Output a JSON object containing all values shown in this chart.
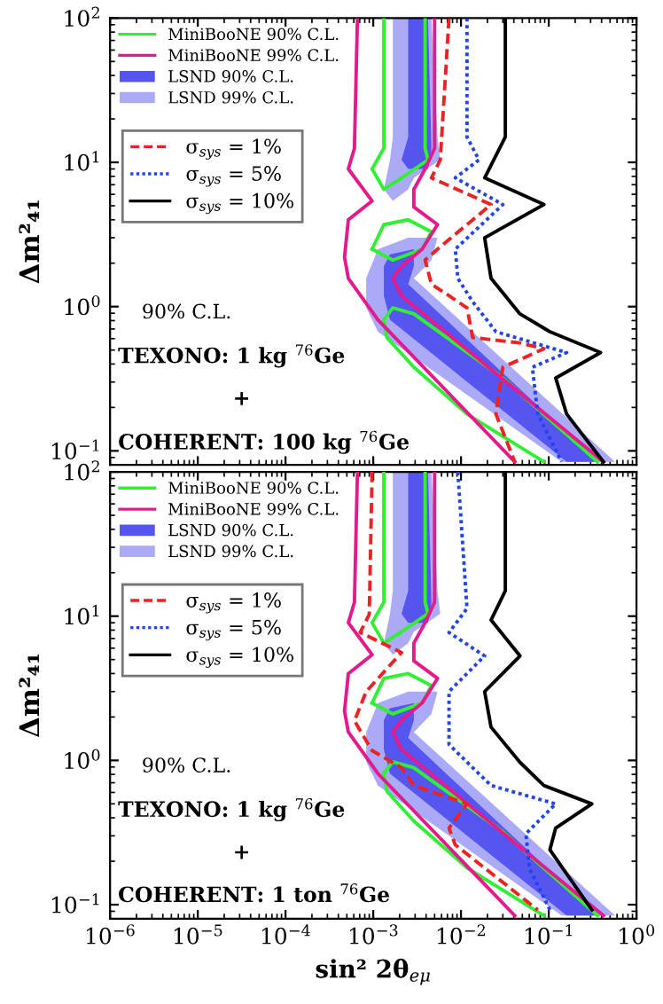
{
  "chart_data": [
    {
      "type": "line",
      "log": "xy",
      "ylabel": "Δm²₄₁",
      "tick_labels": "y",
      "legend": "top left",
      "xlim": [
        1e-06,
        1
      ],
      "ylim": [
        0.08,
        100
      ],
      "xticks": [
        {
          "value": 1e-06,
          "label": null
        },
        {
          "value": 1e-05,
          "label": null
        },
        {
          "value": 0.0001,
          "label": null
        },
        {
          "value": 0.001,
          "label": null
        },
        {
          "value": 0.01,
          "label": null
        },
        {
          "value": 0.1,
          "label": null
        },
        {
          "value": 1,
          "label": null
        }
      ],
      "yticks": [
        {
          "value": 0.1,
          "label": "10$^{−1}$"
        },
        {
          "value": 1,
          "label": "10$^{0}$"
        },
        {
          "value": 10,
          "label": "10$^{1}$"
        },
        {
          "value": 100,
          "label": "10$^{2}$"
        }
      ],
      "annotations": [
        "90% C.L.",
        "TEXONO: 1 kg $^{76}$Ge",
        "+",
        "COHERENT: 100 kg $^{76}$Ge"
      ],
      "series": [
        {
          "name": "MiniBooNE 90% C.L.",
          "type": "line",
          "color": "#33ee33",
          "x": [
            0.00132,
            0.00132,
            0.00097,
            0.00132,
            0.0021,
            0.0042,
            0.0039,
            0.0039
          ],
          "values": [
            100,
            12.5,
            9.0,
            6.5,
            7.8,
            10.4,
            12.5,
            100
          ]
        },
        {
          "type": "line",
          "color": "#33ee34",
          "x": [
            0.00097,
            0.00132,
            0.0025,
            0.0046
          ],
          "values": [
            2.5,
            3.7,
            4.0,
            3.3
          ]
        },
        {
          "type": "line",
          "color": "#33ee35",
          "x": [
            0.0046,
            0.0036,
            0.00167,
            0.00097
          ],
          "values": [
            3.3,
            2.5,
            2.1,
            2.5
          ]
        },
        {
          "type": "line",
          "color": "#33ee36",
          "x": [
            0.00132,
            0.00167,
            0.0029,
            0.03,
            0.36
          ],
          "values": [
            0.81,
            0.98,
            0.89,
            0.32,
            0.084
          ]
        },
        {
          "type": "line",
          "color": "#33ee37",
          "x": [
            0.088,
            0.0117,
            0.0029,
            0.00143,
            0.00132
          ],
          "values": [
            0.084,
            0.18,
            0.38,
            0.61,
            0.81
          ]
        },
        {
          "name": "MiniBooNE 99% C.L.",
          "type": "line",
          "color": "#e6198c",
          "x": [
            0.00066,
            0.00061,
            0.00052,
            0.00097,
            0.00052,
            0.00047,
            0.00052,
            0.00113,
            0.041
          ],
          "values": [
            100,
            12.5,
            9.0,
            5.4,
            4.0,
            2.2,
            1.57,
            0.81,
            0.084
          ]
        },
        {
          "type": "line",
          "color": "#e6198d",
          "x": [
            0.005,
            0.005,
            0.0039,
            0.0029,
            0.0029,
            0.0054,
            0.0036,
            0.0021,
            0.00167,
            0.0021,
            0.42
          ],
          "values": [
            100,
            12.5,
            9.0,
            6.5,
            4.9,
            3.7,
            2.5,
            1.9,
            1.57,
            1.19,
            0.084
          ]
        },
        {
          "name": "LSND 90% C.L.",
          "type": "area",
          "color": "#5555ee",
          "x": [
            0.0025,
            0.0025,
            0.0021,
            0.0025,
            0.0042,
            0.0046,
            0.0042
          ],
          "values": [
            100,
            15,
            10.4,
            9.0,
            9.0,
            12.5,
            100
          ]
        },
        {
          "type": "area",
          "color": "#5555ef",
          "x": [
            0.00132,
            0.00155,
            0.0029,
            0.0029,
            0.0025,
            0.36,
            0.16,
            0.00155,
            0.00132
          ],
          "values": [
            1.9,
            2.3,
            2.5,
            1.9,
            1.43,
            0.084,
            0.084,
            0.81,
            1.19
          ]
        },
        {
          "name": "LSND 99% C.L.",
          "type": "area",
          "color": "#aaaaf5",
          "x": [
            0.00167,
            0.00167,
            0.00155,
            0.00132,
            0.00167,
            0.0025,
            0.0029,
            0.0058,
            0.0054,
            0.0046
          ],
          "values": [
            100,
            15,
            10.4,
            6.5,
            5.4,
            6.5,
            7.8,
            10.4,
            15,
            100
          ]
        },
        {
          "type": "area",
          "color": "#aaaaf6",
          "x": [
            0.00083,
            0.00113,
            0.0025,
            0.0054,
            0.0046,
            0.0029,
            0.57,
            0.14,
            0.00113,
            0.00083
          ],
          "values": [
            1.57,
            2.5,
            3.0,
            3.0,
            2.1,
            1.57,
            0.084,
            0.084,
            0.67,
            0.98
          ]
        },
        {
          "name": "σ$_{sys}$ = 1%",
          "type": "line",
          "line_style": "dashed",
          "color": "#ee2222",
          "x": [
            0.0073,
            0.0058,
            0.0046,
            0.022,
            0.0054,
            0.0039,
            0.0046,
            0.0073,
            0.0117,
            0.0136,
            0.047,
            0.088,
            0.03,
            0.025,
            0.041
          ],
          "values": [
            100,
            10.4,
            7.8,
            5.1,
            2.5,
            2.1,
            1.43,
            1.19,
            0.98,
            0.61,
            0.56,
            0.51,
            0.38,
            0.18,
            0.084
          ]
        },
        {
          "name": "σ$_{sys}$ = 5%",
          "type": "line",
          "line_style": "dotted",
          "color": "#2244ee",
          "x": [
            0.0117,
            0.0117,
            0.016,
            0.0086,
            0.03,
            0.0086,
            0.0092,
            0.0136,
            0.025,
            0.16,
            0.065,
            0.075,
            0.14
          ],
          "values": [
            100,
            15,
            10.4,
            7.8,
            5.1,
            2.5,
            1.57,
            1.08,
            0.67,
            0.48,
            0.38,
            0.18,
            0.084
          ]
        },
        {
          "name": "σ$_{sys}$ = 10%",
          "type": "line",
          "line_style": "solid",
          "color": "#000000",
          "x": [
            0.032,
            0.032,
            0.0186,
            0.088,
            0.0186,
            0.022,
            0.047,
            0.103,
            0.39,
            0.12,
            0.16,
            0.42
          ],
          "values": [
            100,
            15,
            7.8,
            5.1,
            3.0,
            1.57,
            0.89,
            0.67,
            0.48,
            0.32,
            0.18,
            0.084
          ]
        }
      ]
    },
    {
      "type": "line",
      "log": "xy",
      "xlabel": "sin² 2θ$_{eμ}$",
      "ylabel": "Δm²₄₁",
      "legend": "top left",
      "xlim": [
        1e-06,
        1
      ],
      "ylim": [
        0.08,
        100
      ],
      "xticks": [
        {
          "value": 1e-06,
          "label": "10$^{−6}$"
        },
        {
          "value": 1e-05,
          "label": "10$^{−5}$"
        },
        {
          "value": 0.0001,
          "label": "10$^{−4}$"
        },
        {
          "value": 0.001,
          "label": "10$^{−3}$"
        },
        {
          "value": 0.01,
          "label": "10$^{−2}$"
        },
        {
          "value": 0.1,
          "label": "10$^{−1}$"
        },
        {
          "value": 1,
          "label": "10$^{0}$"
        }
      ],
      "yticks": [
        {
          "value": 0.1,
          "label": "10$^{−1}$"
        },
        {
          "value": 1,
          "label": "10$^{0}$"
        },
        {
          "value": 10,
          "label": "10$^{1}$"
        },
        {
          "value": 100,
          "label": "10$^{2}$"
        }
      ],
      "annotations": [
        "90% C.L.",
        "TEXONO: 1 kg $^{76}$Ge",
        "+",
        "COHERENT: 1 ton $^{76}$Ge"
      ],
      "series": [
        {
          "name": "MiniBooNE 90% C.L.",
          "type": "line",
          "color": "#33ee33",
          "x": [
            0.00132,
            0.00132,
            0.00097,
            0.00132,
            0.0021,
            0.0042,
            0.0039,
            0.0039
          ],
          "values": [
            100,
            12.5,
            9.0,
            6.5,
            7.8,
            10.4,
            12.5,
            100
          ]
        },
        {
          "type": "line",
          "color": "#33ee34",
          "x": [
            0.00097,
            0.00132,
            0.0025,
            0.0046
          ],
          "values": [
            2.5,
            3.7,
            4.0,
            3.3
          ]
        },
        {
          "type": "line",
          "color": "#33ee35",
          "x": [
            0.0046,
            0.0036,
            0.00167,
            0.00097
          ],
          "values": [
            3.3,
            2.5,
            2.1,
            2.5
          ]
        },
        {
          "type": "line",
          "color": "#33ee36",
          "x": [
            0.00132,
            0.00167,
            0.0029,
            0.03,
            0.36
          ],
          "values": [
            0.81,
            0.98,
            0.89,
            0.32,
            0.084
          ]
        },
        {
          "type": "line",
          "color": "#33ee37",
          "x": [
            0.088,
            0.0117,
            0.0029,
            0.00143,
            0.00132
          ],
          "values": [
            0.084,
            0.18,
            0.38,
            0.61,
            0.81
          ]
        },
        {
          "name": "MiniBooNE 99% C.L.",
          "type": "line",
          "color": "#e6198c",
          "x": [
            0.00066,
            0.00061,
            0.00052,
            0.00097,
            0.00052,
            0.00047,
            0.00052,
            0.00113,
            0.041
          ],
          "values": [
            100,
            12.5,
            9.0,
            5.4,
            4.0,
            2.2,
            1.57,
            0.81,
            0.084
          ]
        },
        {
          "type": "line",
          "color": "#e6198d",
          "x": [
            0.005,
            0.005,
            0.0039,
            0.0029,
            0.0029,
            0.0054,
            0.0036,
            0.0021,
            0.00167,
            0.0021,
            0.42
          ],
          "values": [
            100,
            12.5,
            9.0,
            6.5,
            4.9,
            3.7,
            2.5,
            1.9,
            1.57,
            1.19,
            0.084
          ]
        },
        {
          "name": "LSND 90% C.L.",
          "type": "area",
          "color": "#5555ee",
          "x": [
            0.0025,
            0.0025,
            0.0021,
            0.0025,
            0.0042,
            0.0046,
            0.0042
          ],
          "values": [
            100,
            15,
            10.4,
            9.0,
            9.0,
            12.5,
            100
          ]
        },
        {
          "type": "area",
          "color": "#5555ef",
          "x": [
            0.00132,
            0.00155,
            0.0029,
            0.0029,
            0.0025,
            0.36,
            0.16,
            0.00155,
            0.00132
          ],
          "values": [
            1.9,
            2.3,
            2.5,
            1.9,
            1.43,
            0.084,
            0.084,
            0.81,
            1.19
          ]
        },
        {
          "name": "LSND 99% C.L.",
          "type": "area",
          "color": "#aaaaf5",
          "x": [
            0.00167,
            0.00167,
            0.00155,
            0.00132,
            0.00167,
            0.0025,
            0.0029,
            0.0058,
            0.0054,
            0.0046
          ],
          "values": [
            100,
            15,
            10.4,
            6.5,
            5.4,
            6.5,
            7.8,
            10.4,
            15,
            100
          ]
        },
        {
          "type": "area",
          "color": "#aaaaf6",
          "x": [
            0.00083,
            0.00113,
            0.0025,
            0.0054,
            0.0046,
            0.0029,
            0.57,
            0.14,
            0.00113,
            0.00083
          ],
          "values": [
            1.57,
            2.5,
            3.0,
            3.0,
            2.1,
            1.57,
            0.084,
            0.084,
            0.67,
            0.98
          ]
        },
        {
          "name": "σ$_{sys}$ = 1%",
          "type": "line",
          "line_style": "dashed",
          "color": "#ee2222",
          "x": [
            0.00097,
            0.0009,
            0.00071,
            0.0021,
            0.00083,
            0.00061,
            0.00097,
            0.0021,
            0.0029,
            0.0117,
            0.0073,
            0.0086,
            0.075
          ],
          "values": [
            100,
            10.3,
            7.7,
            5.6,
            3.0,
            1.88,
            1.17,
            0.89,
            0.67,
            0.5,
            0.34,
            0.26,
            0.092
          ]
        },
        {
          "name": "σ$_{sys}$ = 5%",
          "type": "line",
          "line_style": "dotted",
          "color": "#2244ee",
          "x": [
            0.0092,
            0.0117,
            0.0073,
            0.0186,
            0.0073,
            0.0073,
            0.0136,
            0.022,
            0.12,
            0.055,
            0.06,
            0.103
          ],
          "values": [
            100,
            11.3,
            7.7,
            5.3,
            3.0,
            1.29,
            0.89,
            0.67,
            0.5,
            0.31,
            0.18,
            0.092
          ]
        },
        {
          "name": "σ$_{sys}$ = 10%",
          "type": "line",
          "line_style": "solid",
          "color": "#000000",
          "x": [
            0.032,
            0.032,
            0.022,
            0.047,
            0.0186,
            0.022,
            0.047,
            0.088,
            0.31,
            0.12,
            0.103,
            0.31
          ],
          "values": [
            100,
            15,
            9.4,
            5.3,
            3.0,
            1.7,
            0.97,
            0.67,
            0.5,
            0.34,
            0.24,
            0.092
          ]
        }
      ]
    }
  ]
}
